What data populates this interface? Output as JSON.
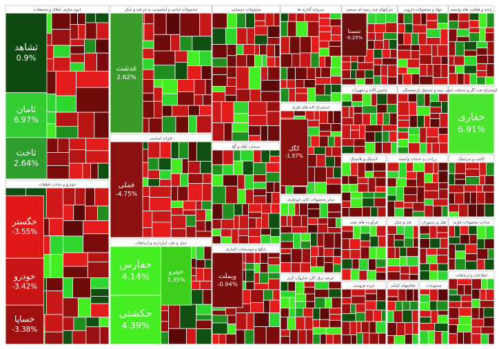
{
  "chart_data": {
    "type": "treemap",
    "sectors": [
      {
        "name": "انبوه سازی، املاک و مستغلات",
        "labels": [
          "ثشاهد",
          "ثامان",
          "ثاخت"
        ],
        "values": [
          0.9,
          6.97,
          2.64
        ],
        "value_labels": [
          "0.9%",
          "6.97%",
          "2.64%"
        ],
        "colors": [
          "#0f4a12",
          "#33cc33",
          "#2e9e2e"
        ]
      },
      {
        "name": "محصولات غذایی و آشامیدنی به جز قند و شکر",
        "labels": [
          "غدشت"
        ],
        "values": [
          2.62
        ],
        "value_labels": [
          "2.62%"
        ],
        "colors": [
          "#3a9a2a"
        ]
      },
      {
        "name": "محصولات شیمیایی"
      },
      {
        "name": "سرمایه گذاری ها"
      },
      {
        "name": "شرکتهای چند رشته ای صنعتی",
        "labels": [
          "شستا"
        ],
        "values": [
          -0.25
        ],
        "value_labels": [
          "-0.25%"
        ],
        "colors": [
          "#6b0f0f"
        ]
      },
      {
        "name": "مواد و محصولات دارویی"
      },
      {
        "name": "رایانه و فعالیت های وابسته"
      },
      {
        "name": "خودرو و ساخت قطعات",
        "labels": [
          "خگستر",
          "خودرو",
          "خساپا"
        ],
        "values": [
          -3.55,
          -3.42,
          -3.38
        ],
        "value_labels": [
          "-3.55%",
          "-3.42%",
          "-3.38%"
        ],
        "colors": [
          "#e01818",
          "#c81414",
          "#a01010"
        ]
      },
      {
        "name": "فلزات اساسی",
        "labels": [
          "فملی"
        ],
        "values": [
          -4.75
        ],
        "value_labels": [
          "-4.75%"
        ],
        "colors": [
          "#8b1010"
        ]
      },
      {
        "name": "حمل و نقل، انبارداری و ارتباطات",
        "labels": [
          "حفارس",
          "حکشتی",
          "حپترو"
        ],
        "values": [
          4.14,
          4.39,
          3.35
        ],
        "value_labels": [
          "4.14%",
          "4.39%",
          "3.35%"
        ],
        "colors": [
          "#44ee22",
          "#44ee22",
          "#3cd01c"
        ]
      },
      {
        "name": "سیمان، آهک و گچ"
      },
      {
        "name": "بانکها و موسسات اعتباری",
        "labels": [
          "وبملت"
        ],
        "values": [
          -0.94
        ],
        "value_labels": [
          "-0.94%"
        ],
        "colors": [
          "#7a0d0d"
        ]
      },
      {
        "name": "استخراج کانه های فلزی",
        "labels": [
          "کگل"
        ],
        "values": [
          -1.97
        ],
        "value_labels": [
          "-1.97%"
        ],
        "colors": [
          "#8a1010"
        ]
      },
      {
        "name": "سایر محصولات کانی غیرفلزی"
      },
      {
        "name": "عرضه برق، گاز، بخاروآب گرم"
      },
      {
        "name": "ماشین آلات و تجهیزات"
      },
      {
        "name": "بیمه و صندوق بازنشستگی"
      },
      {
        "name": "استخراج نفت گاز و خدمات جنبی",
        "labels": [
          "حفاری"
        ],
        "values": [
          6.91
        ],
        "value_labels": [
          "6.91%"
        ],
        "colors": [
          "#4ae52c"
        ]
      },
      {
        "name": "لاستیک و پلاستیک"
      },
      {
        "name": "زراعت و خدمات وابسته"
      },
      {
        "name": "کاشی و سرامیک"
      },
      {
        "name": "فرآورده های نفتی"
      },
      {
        "name": "قند و شکر"
      },
      {
        "name": "هتل و رستوران"
      },
      {
        "name": "ساخت محصولات فلزی"
      },
      {
        "name": "اطلاعات و ارتباطات"
      },
      {
        "name": "خرده فروشی"
      },
      {
        "name": "فعالیتهای کمکی"
      },
      {
        "name": "منسوجات"
      }
    ]
  }
}
